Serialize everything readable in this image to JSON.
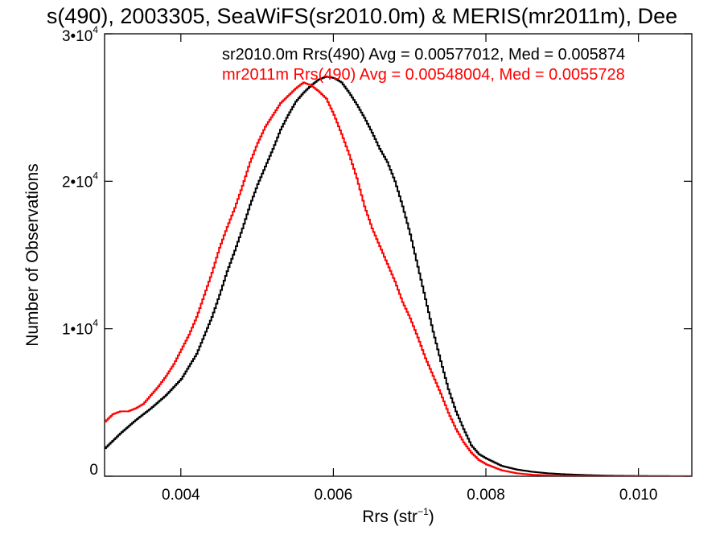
{
  "chart_data": {
    "type": "line",
    "title": "s(490), 2003305, SeaWiFS(sr2010.0m) & MERIS(mr2011m), Dee",
    "xlabel": "Rrs (str",
    "xlabel_sup": "−1",
    "xlabel_end": ")",
    "ylabel": "Number of Observations",
    "xlim": [
      0.003,
      0.0107
    ],
    "ylim": [
      0,
      30000
    ],
    "x_ticks": [
      {
        "value": 0.004,
        "label": "0.004"
      },
      {
        "value": 0.006,
        "label": "0.006"
      },
      {
        "value": 0.008,
        "label": "0.008"
      },
      {
        "value": 0.01,
        "label": "0.010"
      }
    ],
    "y_ticks": [
      {
        "value": 0,
        "base": "0",
        "exp": ""
      },
      {
        "value": 10000,
        "base": "1•10",
        "exp": "4"
      },
      {
        "value": 20000,
        "base": "2•10",
        "exp": "4"
      },
      {
        "value": 30000,
        "base": "3•10",
        "exp": "4"
      }
    ],
    "series": [
      {
        "name": "sr2010.0m Rrs(490) Avg = 0.00577012, Med = 0.005874",
        "color": "#000000",
        "x": [
          0.003,
          0.0032,
          0.0034,
          0.0036,
          0.0038,
          0.004,
          0.0042,
          0.0044,
          0.0045,
          0.0046,
          0.0047,
          0.0048,
          0.0049,
          0.005,
          0.0051,
          0.0052,
          0.0053,
          0.0054,
          0.0055,
          0.0056,
          0.0057,
          0.0058,
          0.0059,
          0.006,
          0.0061,
          0.0062,
          0.0063,
          0.0064,
          0.0065,
          0.0066,
          0.0067,
          0.0068,
          0.0069,
          0.007,
          0.0071,
          0.0072,
          0.0073,
          0.0074,
          0.0075,
          0.0076,
          0.0077,
          0.0078,
          0.0079,
          0.008,
          0.0082,
          0.0084,
          0.0086,
          0.0088,
          0.009,
          0.0093,
          0.0096,
          0.01,
          0.0104,
          0.0107
        ],
        "y": [
          1900,
          2900,
          3800,
          4600,
          5500,
          6600,
          8300,
          10800,
          12300,
          13900,
          15300,
          16800,
          18400,
          19800,
          21000,
          22200,
          23500,
          24500,
          25400,
          26000,
          26500,
          26900,
          27100,
          27000,
          26700,
          26000,
          25200,
          24300,
          23300,
          22200,
          21300,
          20000,
          18300,
          16400,
          14200,
          12000,
          9800,
          7800,
          5900,
          4400,
          3200,
          2100,
          1500,
          1200,
          700,
          450,
          300,
          200,
          140,
          80,
          40,
          20,
          10,
          5
        ]
      },
      {
        "name": "mr2011m Rrs(490) Avg = 0.00548004, Med = 0.0055728",
        "color": "#ff0000",
        "x": [
          0.003,
          0.0031,
          0.0032,
          0.0033,
          0.0034,
          0.0035,
          0.0036,
          0.0037,
          0.0038,
          0.0039,
          0.004,
          0.0041,
          0.0042,
          0.0043,
          0.0044,
          0.0045,
          0.0046,
          0.0047,
          0.0048,
          0.0049,
          0.005,
          0.0051,
          0.0052,
          0.0053,
          0.0054,
          0.0055,
          0.0056,
          0.0057,
          0.0058,
          0.0059,
          0.006,
          0.0061,
          0.0062,
          0.0063,
          0.0064,
          0.0065,
          0.0066,
          0.0067,
          0.0068,
          0.0069,
          0.007,
          0.0071,
          0.0072,
          0.0073,
          0.0074,
          0.0075,
          0.0076,
          0.0077,
          0.0078,
          0.0079,
          0.008,
          0.0082,
          0.0084,
          0.0086,
          0.0088,
          0.009,
          0.0093,
          0.0096,
          0.01,
          0.0104,
          0.0107
        ],
        "y": [
          3700,
          4200,
          4400,
          4400,
          4600,
          4900,
          5500,
          6100,
          6800,
          7600,
          8600,
          9600,
          10800,
          12300,
          13800,
          15500,
          16900,
          18200,
          19700,
          21300,
          22600,
          23700,
          24500,
          25300,
          25800,
          26300,
          26700,
          26500,
          26100,
          25600,
          24500,
          23200,
          21800,
          20200,
          18300,
          16800,
          15600,
          14400,
          13200,
          11800,
          10700,
          9400,
          8000,
          6800,
          5600,
          4300,
          3200,
          2300,
          1600,
          1100,
          800,
          400,
          200,
          100,
          60,
          30,
          15,
          8,
          4,
          2,
          1
        ]
      }
    ]
  }
}
